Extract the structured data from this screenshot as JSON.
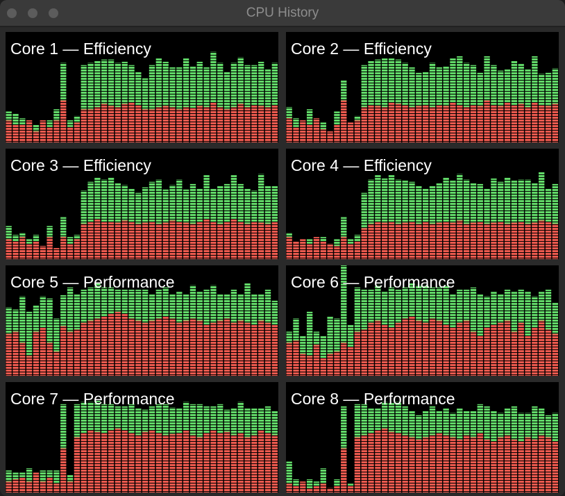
{
  "window": {
    "title": "CPU History"
  },
  "chart_data": [
    {
      "type": "bar",
      "stacked": true,
      "title": "Core 1 — Efficiency",
      "ylim": [
        0,
        100
      ],
      "series": [
        {
          "color": "#ee5a4f",
          "values": [
            20,
            16,
            16,
            20,
            10,
            20,
            14,
            20,
            38,
            14,
            18,
            30,
            30,
            32,
            35,
            33,
            32,
            35,
            36,
            34,
            30,
            30,
            32,
            33,
            32,
            30,
            32,
            31,
            33,
            32,
            36,
            32,
            30,
            32,
            35,
            32,
            34,
            33,
            32,
            34
          ]
        },
        {
          "color": "#62da69",
          "values": [
            8,
            10,
            6,
            0,
            6,
            0,
            6,
            10,
            34,
            6,
            6,
            40,
            42,
            42,
            40,
            42,
            40,
            38,
            34,
            30,
            28,
            40,
            44,
            40,
            36,
            38,
            44,
            38,
            40,
            36,
            46,
            40,
            34,
            40,
            42,
            38,
            36,
            40,
            34,
            38
          ]
        }
      ]
    },
    {
      "type": "bar",
      "stacked": true,
      "title": "Core 2 — Efficiency",
      "ylim": [
        0,
        100
      ],
      "series": [
        {
          "color": "#ee5a4f",
          "values": [
            22,
            14,
            20,
            16,
            22,
            12,
            10,
            16,
            38,
            18,
            20,
            32,
            34,
            33,
            32,
            36,
            35,
            34,
            32,
            33,
            34,
            32,
            34,
            33,
            36,
            34,
            32,
            34,
            33,
            38,
            34,
            33,
            36,
            34,
            35,
            32,
            36,
            34,
            33,
            35
          ]
        },
        {
          "color": "#62da69",
          "values": [
            10,
            8,
            0,
            14,
            0,
            6,
            0,
            12,
            18,
            0,
            4,
            38,
            40,
            42,
            44,
            40,
            40,
            38,
            36,
            30,
            30,
            40,
            34,
            36,
            40,
            44,
            40,
            36,
            30,
            40,
            36,
            32,
            30,
            40,
            36,
            34,
            42,
            28,
            30,
            32
          ]
        }
      ]
    },
    {
      "type": "bar",
      "stacked": true,
      "title": "Core 3 — Efficiency",
      "ylim": [
        0,
        100
      ],
      "series": [
        {
          "color": "#ee5a4f",
          "values": [
            18,
            16,
            20,
            14,
            16,
            12,
            20,
            10,
            20,
            14,
            18,
            32,
            34,
            36,
            34,
            34,
            33,
            35,
            34,
            32,
            33,
            34,
            32,
            33,
            35,
            34,
            33,
            32,
            34,
            36,
            34,
            32,
            34,
            36,
            34,
            32,
            34,
            33,
            32,
            34
          ]
        },
        {
          "color": "#62da69",
          "values": [
            12,
            6,
            4,
            4,
            6,
            0,
            10,
            0,
            18,
            6,
            4,
            30,
            36,
            38,
            38,
            40,
            36,
            32,
            30,
            28,
            32,
            36,
            40,
            30,
            32,
            38,
            30,
            36,
            30,
            40,
            30,
            34,
            34,
            40,
            34,
            32,
            28,
            44,
            34,
            32
          ]
        }
      ]
    },
    {
      "type": "bar",
      "stacked": true,
      "title": "Core 4 — Efficiency",
      "ylim": [
        0,
        100
      ],
      "series": [
        {
          "color": "#ee5a4f",
          "values": [
            20,
            16,
            18,
            14,
            20,
            16,
            14,
            12,
            20,
            14,
            16,
            28,
            32,
            34,
            33,
            34,
            32,
            33,
            34,
            32,
            34,
            32,
            33,
            34,
            33,
            35,
            32,
            33,
            34,
            32,
            33,
            34,
            32,
            33,
            34,
            32,
            33,
            35,
            34,
            32
          ]
        },
        {
          "color": "#62da69",
          "values": [
            4,
            0,
            0,
            4,
            0,
            4,
            0,
            6,
            18,
            4,
            6,
            32,
            40,
            42,
            40,
            42,
            40,
            38,
            36,
            34,
            30,
            34,
            36,
            40,
            38,
            42,
            40,
            36,
            34,
            32,
            40,
            36,
            42,
            38,
            38,
            40,
            36,
            44,
            30,
            36
          ]
        }
      ]
    },
    {
      "type": "bar",
      "stacked": true,
      "title": "Core 5 — Performance",
      "ylim": [
        0,
        100
      ],
      "series": [
        {
          "color": "#ee5a4f",
          "values": [
            38,
            40,
            30,
            18,
            40,
            44,
            30,
            22,
            45,
            40,
            42,
            48,
            50,
            52,
            54,
            56,
            58,
            56,
            52,
            50,
            48,
            50,
            52,
            54,
            52,
            48,
            50,
            52,
            50,
            46,
            48,
            50,
            52,
            48,
            50,
            48,
            46,
            50,
            48,
            46
          ]
        },
        {
          "color": "#62da69",
          "values": [
            24,
            20,
            42,
            40,
            24,
            28,
            40,
            30,
            28,
            40,
            32,
            30,
            30,
            32,
            26,
            24,
            20,
            22,
            26,
            28,
            30,
            24,
            26,
            26,
            22,
            28,
            24,
            30,
            26,
            32,
            34,
            24,
            22,
            30,
            24,
            36,
            28,
            24,
            30,
            22
          ]
        }
      ]
    },
    {
      "type": "bar",
      "stacked": true,
      "title": "Core 6 — Performance",
      "ylim": [
        0,
        100
      ],
      "series": [
        {
          "color": "#ee5a4f",
          "values": [
            30,
            32,
            20,
            18,
            28,
            16,
            20,
            22,
            30,
            26,
            40,
            42,
            48,
            50,
            46,
            44,
            48,
            52,
            54,
            50,
            48,
            52,
            50,
            46,
            44,
            48,
            50,
            40,
            36,
            44,
            46,
            48,
            50,
            40,
            48,
            36,
            44,
            50,
            42,
            38
          ]
        },
        {
          "color": "#62da69",
          "values": [
            10,
            20,
            16,
            40,
            12,
            20,
            34,
            30,
            70,
            20,
            40,
            36,
            30,
            32,
            30,
            36,
            30,
            28,
            30,
            32,
            34,
            28,
            30,
            36,
            30,
            30,
            28,
            40,
            38,
            28,
            30,
            26,
            28,
            36,
            30,
            40,
            28,
            26,
            36,
            28
          ]
        }
      ]
    },
    {
      "type": "bar",
      "stacked": true,
      "title": "Core 7 — Performance",
      "ylim": [
        0,
        100
      ],
      "series": [
        {
          "color": "#ee5a4f",
          "values": [
            10,
            12,
            14,
            10,
            18,
            10,
            14,
            8,
            40,
            10,
            50,
            54,
            56,
            55,
            54,
            56,
            58,
            56,
            54,
            52,
            55,
            56,
            54,
            52,
            53,
            54,
            56,
            52,
            50,
            54,
            56,
            54,
            55,
            52,
            54,
            50,
            52,
            56,
            54,
            52
          ]
        },
        {
          "color": "#62da69",
          "values": [
            10,
            6,
            4,
            12,
            0,
            10,
            6,
            12,
            40,
            6,
            30,
            28,
            26,
            28,
            26,
            24,
            20,
            22,
            26,
            24,
            20,
            22,
            26,
            28,
            24,
            22,
            26,
            28,
            30,
            24,
            22,
            26,
            20,
            24,
            28,
            26,
            24,
            20,
            24,
            22
          ]
        }
      ]
    },
    {
      "type": "bar",
      "stacked": true,
      "title": "Core 8 — Performance",
      "ylim": [
        0,
        100
      ],
      "series": [
        {
          "color": "#ee5a4f",
          "values": [
            8,
            6,
            10,
            4,
            6,
            8,
            4,
            6,
            40,
            6,
            50,
            52,
            54,
            56,
            58,
            55,
            54,
            52,
            50,
            48,
            50,
            52,
            54,
            52,
            50,
            48,
            52,
            50,
            54,
            48,
            46,
            50,
            52,
            48,
            46,
            50,
            48,
            52,
            50,
            46
          ]
        },
        {
          "color": "#62da69",
          "values": [
            20,
            6,
            0,
            8,
            4,
            14,
            0,
            6,
            38,
            2,
            30,
            28,
            22,
            20,
            24,
            26,
            28,
            26,
            24,
            22,
            24,
            26,
            20,
            24,
            22,
            28,
            22,
            24,
            26,
            30,
            28,
            22,
            24,
            30,
            26,
            22,
            30,
            24,
            20,
            26
          ]
        }
      ]
    }
  ]
}
